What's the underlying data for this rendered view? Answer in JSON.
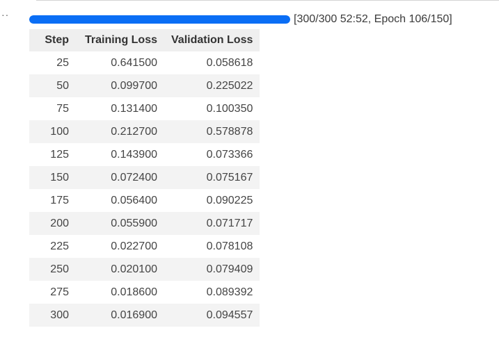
{
  "progress": {
    "fraction": 1.0,
    "label": "[300/300 52:52, Epoch 106/150]",
    "color": "#0a6ef5"
  },
  "gutter": {
    "ellipsis": "··"
  },
  "table": {
    "columns": [
      "Step",
      "Training Loss",
      "Validation Loss"
    ],
    "rows": [
      [
        "25",
        "0.641500",
        "0.058618"
      ],
      [
        "50",
        "0.099700",
        "0.225022"
      ],
      [
        "75",
        "0.131400",
        "0.100350"
      ],
      [
        "100",
        "0.212700",
        "0.578878"
      ],
      [
        "125",
        "0.143900",
        "0.073366"
      ],
      [
        "150",
        "0.072400",
        "0.075167"
      ],
      [
        "175",
        "0.056400",
        "0.090225"
      ],
      [
        "200",
        "0.055900",
        "0.071717"
      ],
      [
        "225",
        "0.022700",
        "0.078108"
      ],
      [
        "250",
        "0.020100",
        "0.079409"
      ],
      [
        "275",
        "0.018600",
        "0.089392"
      ],
      [
        "300",
        "0.016900",
        "0.094557"
      ]
    ]
  }
}
